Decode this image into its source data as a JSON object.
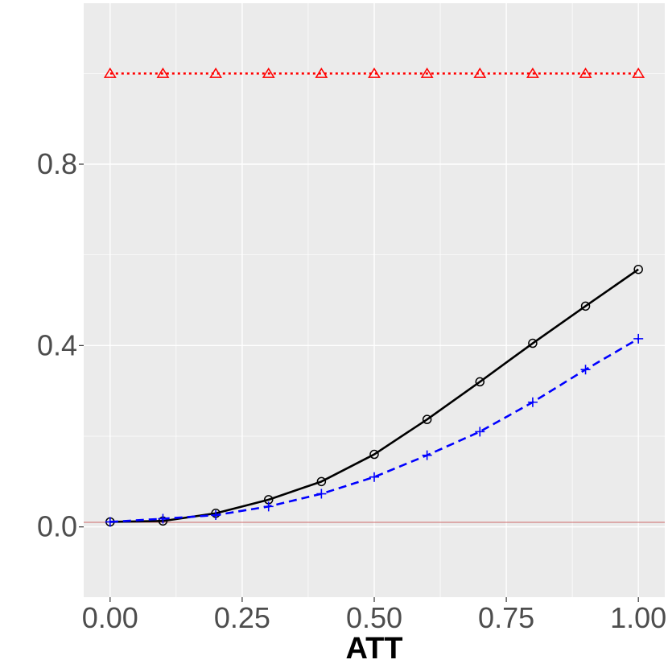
{
  "chart_data": {
    "type": "line",
    "title": "",
    "xlabel": "ATT",
    "ylabel": "",
    "xlim": [
      -0.05,
      1.05
    ],
    "ylim": [
      -0.155,
      1.155
    ],
    "x_ticks": [
      0.0,
      0.25,
      0.5,
      0.75,
      1.0
    ],
    "x_tick_labels": [
      "0.00",
      "0.25",
      "0.50",
      "0.75",
      "1.00"
    ],
    "y_ticks": [
      0.0,
      0.4,
      0.8
    ],
    "y_tick_labels": [
      "0.0",
      "0.4",
      "0.8"
    ],
    "x_minor_ticks": [
      0.125,
      0.375,
      0.625,
      0.875
    ],
    "y_minor_ticks": [
      0.2,
      0.6,
      1.0
    ],
    "grid": true,
    "legend": "none",
    "reference_line": {
      "y": 0.01,
      "color": "#cd6a6a"
    },
    "x": [
      0.0,
      0.1,
      0.2,
      0.3,
      0.4,
      0.5,
      0.6,
      0.7,
      0.8,
      0.9,
      1.0
    ],
    "series": [
      {
        "values": [
          1.0,
          1.0,
          1.0,
          1.0,
          1.0,
          1.0,
          1.0,
          1.0,
          1.0,
          1.0,
          1.0
        ],
        "color": "#ff0000",
        "line_style": "dotted",
        "marker": "triangle"
      },
      {
        "values": [
          0.011,
          0.013,
          0.03,
          0.06,
          0.1,
          0.16,
          0.237,
          0.32,
          0.405,
          0.487,
          0.568
        ],
        "color": "#000000",
        "line_style": "solid",
        "marker": "circle"
      },
      {
        "values": [
          0.011,
          0.018,
          0.026,
          0.045,
          0.073,
          0.11,
          0.158,
          0.21,
          0.275,
          0.347,
          0.415
        ],
        "color": "#0000ff",
        "line_style": "dashed",
        "marker": "plus"
      }
    ]
  }
}
